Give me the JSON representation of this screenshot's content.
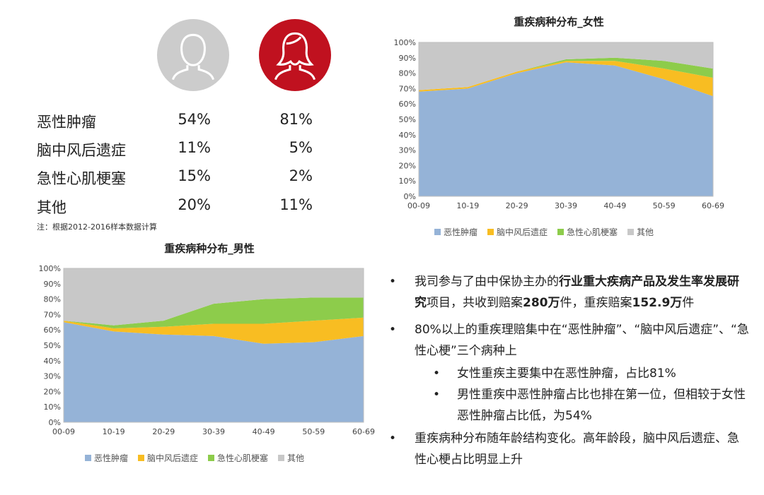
{
  "table": {
    "rows": [
      {
        "label": "恶性肿瘤",
        "male": "54%",
        "female": "81%"
      },
      {
        "label": "脑中风后遗症",
        "male": "11%",
        "female": "5%"
      },
      {
        "label": "急性心肌梗塞",
        "male": "15%",
        "female": "2%"
      },
      {
        "label": "其他",
        "male": "20%",
        "female": "11%"
      }
    ],
    "note": "注：根据2012-2016样本数据计算"
  },
  "colors": {
    "male_avatar": "#cccccc",
    "female_avatar": "#c0111f",
    "s1": "#95b3d7",
    "s2": "#f8bd22",
    "s3": "#8dcc4b",
    "s4": "#c8c8c8"
  },
  "bullets": {
    "b1_pre": "我司参与了由中保协主办的",
    "b1_bold": "行业重大疾病产品及发生率发展研究",
    "b1_mid": "项目，共收到赔案",
    "b1_bold2": "280万",
    "b1_mid2": "件，重疾赔案",
    "b1_bold3": "152.9万",
    "b1_end": "件",
    "b2": "80%以上的重疾理赔集中在“恶性肿瘤”、“脑中风后遗症”、“急性心梗”三个病种上",
    "b2a": "女性重疾主要集中在恶性肿瘤，占比81%",
    "b2b": "男性重疾中恶性肿瘤占比也排在第一位，但相较于女性恶性肿瘤占比低，为54%",
    "b3": "重疾病种分布随年龄结构变化。高年龄段，脑中风后遗症、急性心梗占比明显上升",
    "dot": "•"
  },
  "chart_data": [
    {
      "type": "area",
      "stacked": true,
      "title": "重疾病种分布_女性",
      "categories": [
        "00-09",
        "10-19",
        "20-29",
        "30-39",
        "40-49",
        "50-59",
        "60-69"
      ],
      "yticks": [
        "0%",
        "10%",
        "20%",
        "30%",
        "40%",
        "50%",
        "60%",
        "70%",
        "80%",
        "90%",
        "100%"
      ],
      "ylim": [
        0,
        100
      ],
      "series": [
        {
          "name": "恶性肿瘤",
          "values": [
            68,
            70,
            80,
            87,
            85,
            76,
            65
          ]
        },
        {
          "name": "脑中风后遗症",
          "values": [
            1,
            1,
            1,
            1,
            3,
            7,
            12
          ]
        },
        {
          "name": "急性心肌梗塞",
          "values": [
            0,
            0,
            0,
            1,
            2,
            5,
            6
          ]
        },
        {
          "name": "其他",
          "values": [
            31,
            29,
            19,
            11,
            10,
            12,
            17
          ]
        }
      ],
      "legend": "bottom"
    },
    {
      "type": "area",
      "stacked": true,
      "title": "重疾病种分布_男性",
      "categories": [
        "00-09",
        "10-19",
        "20-29",
        "30-39",
        "40-49",
        "50-59",
        "60-69"
      ],
      "yticks": [
        "0%",
        "10%",
        "20%",
        "30%",
        "40%",
        "50%",
        "60%",
        "70%",
        "80%",
        "90%",
        "100%"
      ],
      "ylim": [
        0,
        100
      ],
      "series": [
        {
          "name": "恶性肿瘤",
          "values": [
            65,
            59,
            57,
            56,
            51,
            52,
            56
          ]
        },
        {
          "name": "脑中风后遗症",
          "values": [
            1,
            2,
            5,
            8,
            13,
            14,
            12
          ]
        },
        {
          "name": "急性心肌梗塞",
          "values": [
            0,
            2,
            4,
            13,
            16,
            15,
            13
          ]
        },
        {
          "name": "其他",
          "values": [
            34,
            37,
            34,
            23,
            20,
            19,
            19
          ]
        }
      ],
      "legend": "bottom"
    }
  ]
}
